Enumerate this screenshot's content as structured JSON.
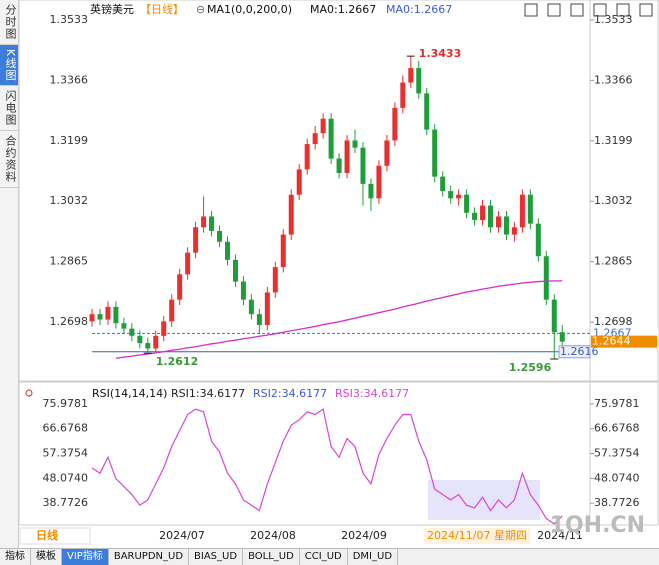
{
  "sidebar": [
    "分时图",
    "K线图",
    "闪电图",
    "合约资料"
  ],
  "chart_data": [
    {
      "type": "candlestick",
      "title": "英镑美元",
      "period": "【日线】",
      "icon": "⊖",
      "indicator": "MA1(0,0,200,0)",
      "indicator_values": [
        "MA0:1.2667",
        "MA0:1.2667"
      ],
      "up_color": "#e8312f",
      "down_color": "#1f9d3a",
      "open": [
        1.27,
        1.272,
        1.2705,
        1.274,
        1.2695,
        1.268,
        1.266,
        1.264,
        1.2625,
        1.266,
        1.27,
        1.276,
        1.283,
        1.289,
        1.296,
        1.299,
        1.295,
        1.292,
        1.287,
        1.281,
        1.276,
        1.272,
        1.269,
        1.278,
        1.285,
        1.294,
        1.305,
        1.312,
        1.319,
        1.322,
        1.326,
        1.315,
        1.311,
        1.32,
        1.318,
        1.308,
        1.304,
        1.313,
        1.32,
        1.329,
        1.336,
        1.34,
        1.333,
        1.323,
        1.31,
        1.306,
        1.304,
        1.305,
        1.3,
        1.298,
        1.302,
        1.296,
        1.299,
        1.294,
        1.296,
        1.305,
        1.297,
        1.288,
        1.276,
        1.267
      ],
      "high": [
        1.2735,
        1.2735,
        1.2755,
        1.2755,
        1.271,
        1.2695,
        1.2675,
        1.2655,
        1.2675,
        1.2715,
        1.2775,
        1.2845,
        1.2905,
        1.2975,
        1.3045,
        1.3005,
        1.2965,
        1.2935,
        1.2885,
        1.2825,
        1.2775,
        1.2735,
        1.2795,
        1.2865,
        1.2955,
        1.3065,
        1.3135,
        1.3205,
        1.324,
        1.3275,
        1.3275,
        1.3165,
        1.3215,
        1.323,
        1.3195,
        1.3095,
        1.3145,
        1.3215,
        1.3305,
        1.338,
        1.3433,
        1.342,
        1.3345,
        1.3245,
        1.3115,
        1.3075,
        1.3065,
        1.3065,
        1.3015,
        1.3035,
        1.3035,
        1.3005,
        1.3005,
        1.2975,
        1.3065,
        1.3065,
        1.2985,
        1.2895,
        1.2775,
        1.269
      ],
      "low": [
        1.2685,
        1.269,
        1.269,
        1.268,
        1.2665,
        1.2645,
        1.2625,
        1.2612,
        1.2615,
        1.2645,
        1.2685,
        1.2745,
        1.2815,
        1.2875,
        1.2945,
        1.2935,
        1.2905,
        1.2855,
        1.2795,
        1.2745,
        1.2705,
        1.2665,
        1.2675,
        1.2765,
        1.2835,
        1.2925,
        1.3035,
        1.3105,
        1.3175,
        1.3205,
        1.3135,
        1.3095,
        1.3095,
        1.3165,
        1.302,
        1.3005,
        1.3025,
        1.3115,
        1.3185,
        1.3275,
        1.3345,
        1.3315,
        1.3215,
        1.3085,
        1.3045,
        1.3025,
        1.302,
        1.2985,
        1.2965,
        1.2965,
        1.2945,
        1.2945,
        1.2925,
        1.292,
        1.2945,
        1.2955,
        1.2865,
        1.2745,
        1.2596,
        1.263
      ],
      "close": [
        1.272,
        1.2705,
        1.274,
        1.2695,
        1.268,
        1.266,
        1.264,
        1.2625,
        1.266,
        1.27,
        1.276,
        1.283,
        1.289,
        1.296,
        1.299,
        1.295,
        1.292,
        1.287,
        1.281,
        1.276,
        1.272,
        1.269,
        1.278,
        1.285,
        1.294,
        1.305,
        1.312,
        1.319,
        1.322,
        1.326,
        1.315,
        1.311,
        1.32,
        1.318,
        1.308,
        1.304,
        1.313,
        1.32,
        1.329,
        1.336,
        1.34,
        1.333,
        1.323,
        1.31,
        1.306,
        1.304,
        1.305,
        1.3,
        1.298,
        1.302,
        1.296,
        1.299,
        1.294,
        1.296,
        1.305,
        1.297,
        1.288,
        1.276,
        1.267,
        1.2644
      ],
      "ma": {
        "color": "#d42fc8",
        "values": [
          null,
          null,
          null,
          1.2598,
          1.2601,
          1.2604,
          1.2607,
          1.261,
          1.2613,
          1.2616,
          1.262,
          1.2623,
          1.2627,
          1.263,
          1.2634,
          1.2638,
          1.2641,
          1.2645,
          1.2648,
          1.2652,
          1.2655,
          1.2659,
          1.2662,
          1.2666,
          1.267,
          1.2674,
          1.2678,
          1.2682,
          1.2686,
          1.2691,
          1.2695,
          1.2699,
          1.2704,
          1.2709,
          1.2714,
          1.2719,
          1.2724,
          1.2729,
          1.2734,
          1.274,
          1.2745,
          1.275,
          1.2756,
          1.2761,
          1.2766,
          1.2771,
          1.2776,
          1.2781,
          1.2785,
          1.2789,
          1.2793,
          1.2797,
          1.28,
          1.2803,
          1.2806,
          1.2808,
          1.281,
          1.2811,
          1.2812,
          1.2812
        ]
      },
      "ylim": [
        1.2538,
        1.3566
      ],
      "yticks": [
        1.3533,
        1.3366,
        1.3199,
        1.3032,
        1.2865,
        1.2698
      ],
      "annotations": [
        {
          "text": "1.3433",
          "value": 1.3433,
          "color": "#d9302b"
        },
        {
          "text": "1.2612",
          "value": 1.2612,
          "color": "#3a9a3a"
        },
        {
          "text": "1.2596",
          "value": 1.2596,
          "color": "#3a9a3a"
        }
      ],
      "hlines": [
        {
          "value": 1.2667,
          "label": "1.2667",
          "color": "#3b6fd8",
          "dashed": true
        },
        {
          "value": 1.2616,
          "label": "1.2616",
          "color": "#3b5bb8",
          "dashed": false
        },
        {
          "value": 1.2644,
          "label": "1.2644",
          "color": "#f08c00",
          "dashed": false
        }
      ]
    },
    {
      "type": "line",
      "title": "RSI(14,14,14)",
      "legend": [
        "RSI1:34.6177",
        "RSI2:34.6177",
        "RSI3:34.6177"
      ],
      "legend_colors": [
        "#222",
        "#3b5bd8",
        "#d946d0"
      ],
      "color": "#d946d0",
      "values": [
        52,
        50,
        56,
        48,
        45,
        42,
        38,
        40,
        46,
        52,
        60,
        66,
        72,
        74,
        73,
        62,
        58,
        50,
        46,
        40,
        38,
        36,
        46,
        54,
        62,
        68,
        70,
        73,
        72,
        74,
        60,
        56,
        63,
        60,
        50,
        46,
        57,
        63,
        68,
        72,
        72,
        62,
        55,
        44,
        42,
        40,
        42,
        38,
        37,
        41,
        36,
        40,
        37,
        40,
        50,
        42,
        38,
        33,
        31,
        34
      ],
      "ylim": [
        30.59,
        81.93
      ],
      "yticks": [
        75.9781,
        66.6768,
        57.3754,
        {
          "value": 48.074,
          "label": "48.0740"
        },
        38.7726
      ]
    }
  ],
  "x_labels": [
    "2024/07",
    "2024/08",
    "2024/09",
    "2024/11"
  ],
  "cursor_label": "2024/11/07 星期四",
  "period_tab": "日线",
  "watermark": "1QH.CN",
  "tabs": [
    "指标",
    "模板",
    "VIP指标",
    "BARUPDN_UD",
    "BIAS_UD",
    "BOLL_UD",
    "CCI_UD",
    "DMI_UD"
  ]
}
